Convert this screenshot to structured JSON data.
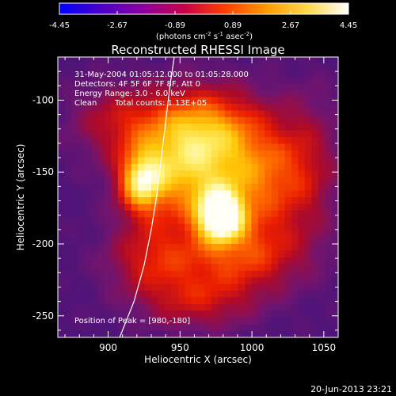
{
  "chart_data": {
    "type": "heatmap",
    "title": "Reconstructed RHESSI Image",
    "xlabel": "Heliocentric X (arcsec)",
    "ylabel": "Heliocentric Y (arcsec)",
    "xlim": [
      865,
      1060
    ],
    "ylim": [
      -265,
      -70
    ],
    "x_ticks": [
      900,
      950,
      1000,
      1050
    ],
    "y_ticks": [
      -100,
      -150,
      -200,
      -250
    ],
    "colorbar": {
      "ticks": [
        "-4.45",
        "-2.67",
        "-0.89",
        "0.89",
        "2.67",
        "4.45"
      ],
      "unit_label": "(photons cm",
      "unit_exp1": "-2",
      "unit_mid": " s",
      "unit_exp2": "-1",
      "unit_mid2": " asec",
      "unit_exp3": "-2",
      "unit_end": ")",
      "range": [
        -4.45,
        4.45
      ]
    },
    "annotations": {
      "time_range": "31-May-2004 01:05:12.000 to 01:05:28.000",
      "detectors": "Detectors: 4F 5F 6F 7F 8F, Att 0",
      "energy_range": "Energy Range: 3.0 - 6.0 keV",
      "method": "Clean",
      "total_counts": "Total counts: 1.13E+05",
      "peak_position": "Position of Peak = [980,-180]"
    },
    "peak": [
      980,
      -180
    ],
    "limb_curve": [
      [
        908,
        -265
      ],
      [
        918,
        -240
      ],
      [
        925,
        -215
      ],
      [
        930,
        -190
      ],
      [
        934,
        -165
      ],
      [
        937,
        -140
      ],
      [
        940,
        -115
      ],
      [
        943,
        -90
      ],
      [
        946,
        -70
      ]
    ],
    "sources": [
      {
        "x": 978,
        "y": -180,
        "sx": 11,
        "sy": 12,
        "amp": 0.95
      },
      {
        "x": 923,
        "y": -157,
        "sx": 11,
        "sy": 15,
        "amp": 0.66
      },
      {
        "x": 955,
        "y": -152,
        "sx": 26,
        "sy": 24,
        "amp": 0.62
      },
      {
        "x": 965,
        "y": -118,
        "sx": 30,
        "sy": 20,
        "amp": 0.55
      },
      {
        "x": 1007,
        "y": -155,
        "sx": 22,
        "sy": 26,
        "amp": 0.46
      },
      {
        "x": 992,
        "y": -208,
        "sx": 30,
        "sy": 18,
        "amp": 0.44
      },
      {
        "x": 930,
        "y": -210,
        "sx": 22,
        "sy": 18,
        "amp": 0.34
      },
      {
        "x": 962,
        "y": -240,
        "sx": 28,
        "sy": 14,
        "amp": 0.3
      },
      {
        "x": 1040,
        "y": -145,
        "sx": 16,
        "sy": 36,
        "amp": 0.22
      },
      {
        "x": 905,
        "y": -115,
        "sx": 22,
        "sy": 18,
        "amp": 0.26
      }
    ],
    "colormap": [
      "#0000ff",
      "#4a00c8",
      "#8a00a0",
      "#c8004a",
      "#ff3c00",
      "#ff9a00",
      "#ffd84a",
      "#ffffff"
    ]
  },
  "footer": {
    "timestamp": "20-Jun-2013 23:21"
  }
}
